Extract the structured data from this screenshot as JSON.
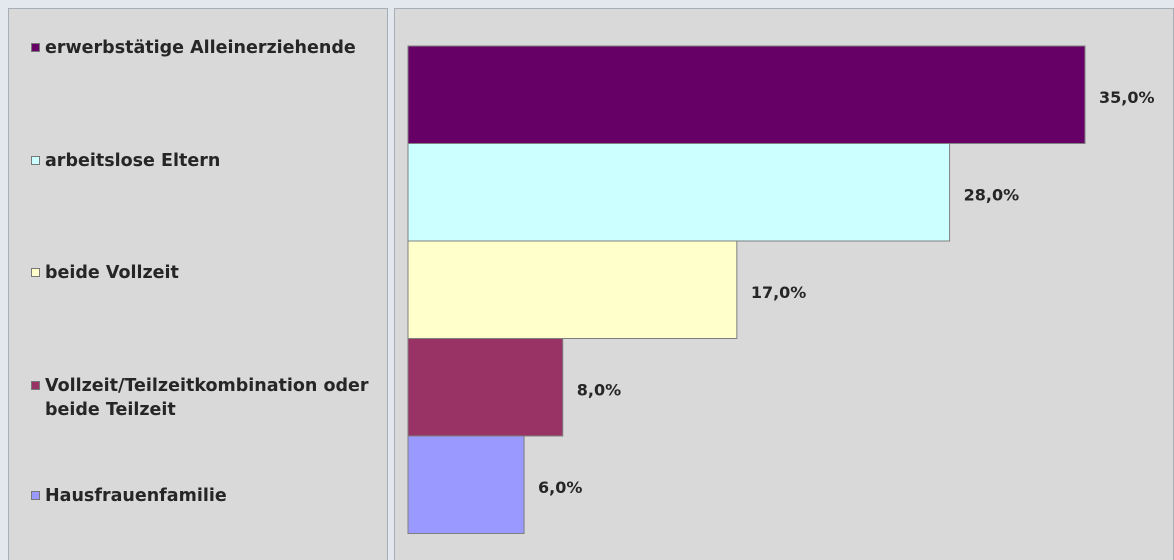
{
  "chart_data": {
    "type": "bar",
    "orientation": "horizontal",
    "categories": [
      "erwerbstätige Alleinerziehende",
      "arbeitslose Eltern",
      "beide Vollzeit",
      "Vollzeit/Teilzeitkombination oder beide Teilzeit",
      "Hausfrauenfamilie"
    ],
    "legend_lines": [
      [
        "erwerbstätige Alleinerziehende"
      ],
      [
        "arbeitslose Eltern"
      ],
      [
        "beide Vollzeit"
      ],
      [
        "Vollzeit/Teilzeitkombination oder",
        "beide Teilzeit"
      ],
      [
        "Hausfrauenfamilie"
      ]
    ],
    "values": [
      35.0,
      28.0,
      17.0,
      8.0,
      6.0
    ],
    "data_labels": [
      "35,0%",
      "28,0%",
      "17,0%",
      "8,0%",
      "6,0%"
    ],
    "colors": [
      "#660066",
      "#ccffff",
      "#ffffcc",
      "#993366",
      "#9999ff"
    ],
    "xlim": [
      0,
      40
    ],
    "legend_position": "left",
    "grid": false
  }
}
